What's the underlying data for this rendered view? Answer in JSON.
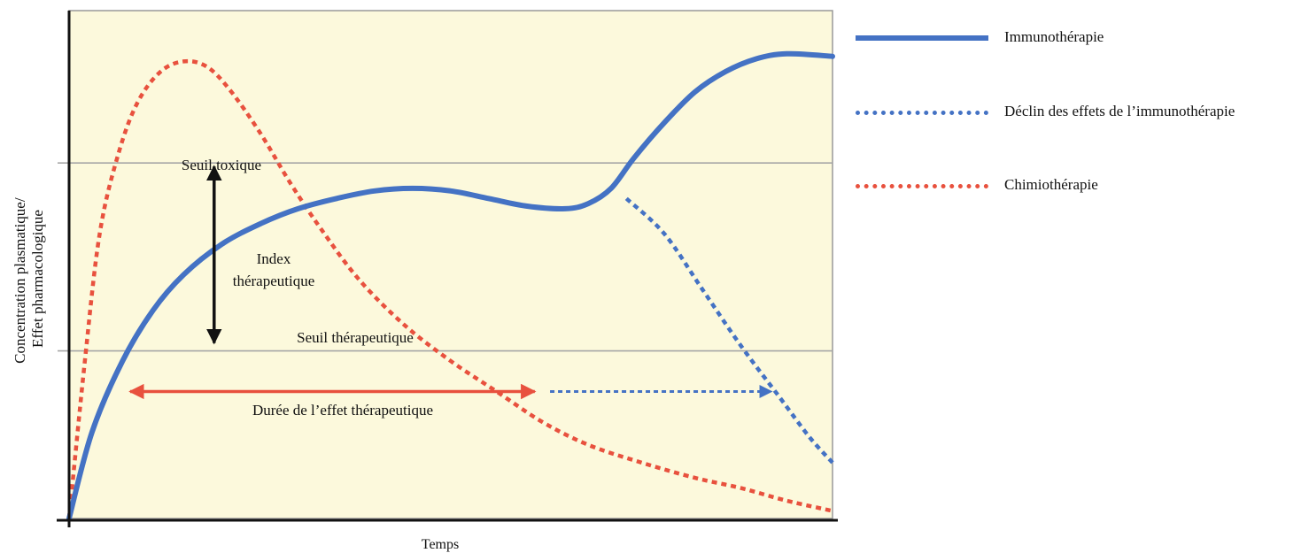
{
  "chart_data": {
    "type": "line",
    "title": "",
    "xlabel": "Temps",
    "ylabel_lines": [
      "Concentration plasmatique/",
      "Effet pharmacologique"
    ],
    "xlim": [
      0,
      100
    ],
    "ylim": [
      0,
      100
    ],
    "grid": false,
    "legend_position": "right",
    "thresholds": [
      {
        "name": "Seuil toxique",
        "y": 70
      },
      {
        "name": "Seuil thérapeutique",
        "y": 33
      }
    ],
    "series": [
      {
        "name": "Immunothérapie",
        "style": "solid",
        "color": "#4472c4",
        "points": [
          [
            0,
            0
          ],
          [
            3,
            17
          ],
          [
            7,
            31
          ],
          [
            11,
            41
          ],
          [
            15,
            48
          ],
          [
            20,
            54
          ],
          [
            25,
            58
          ],
          [
            30,
            61
          ],
          [
            35,
            63
          ],
          [
            40,
            64.5
          ],
          [
            45,
            65
          ],
          [
            50,
            64.5
          ],
          [
            55,
            63
          ],
          [
            60,
            61.5
          ],
          [
            65,
            61
          ],
          [
            68,
            62
          ],
          [
            71,
            65
          ],
          [
            74,
            71
          ],
          [
            78,
            78
          ],
          [
            82,
            84
          ],
          [
            86,
            88
          ],
          [
            90,
            90.5
          ],
          [
            94,
            91.5
          ],
          [
            100,
            91
          ]
        ]
      },
      {
        "name": "Déclin des effets de l’immunothérapie",
        "style": "dotted",
        "color": "#4472c4",
        "points": [
          [
            73,
            63
          ],
          [
            78,
            56
          ],
          [
            83,
            45
          ],
          [
            88,
            34
          ],
          [
            93,
            24
          ],
          [
            97,
            16
          ],
          [
            100,
            11
          ]
        ]
      },
      {
        "name": "Chimiothérapie",
        "style": "dotted",
        "color": "#e8513e",
        "points": [
          [
            0,
            0
          ],
          [
            2,
            30
          ],
          [
            4,
            56
          ],
          [
            6.5,
            72
          ],
          [
            9,
            82
          ],
          [
            12,
            88
          ],
          [
            15,
            90
          ],
          [
            18,
            89
          ],
          [
            21,
            84.5
          ],
          [
            25,
            76
          ],
          [
            29,
            66
          ],
          [
            33,
            57
          ],
          [
            38,
            47
          ],
          [
            44,
            38
          ],
          [
            50,
            31
          ],
          [
            56,
            25
          ],
          [
            62,
            19
          ],
          [
            68,
            14.5
          ],
          [
            75,
            11
          ],
          [
            82,
            8
          ],
          [
            88,
            6
          ],
          [
            94,
            3.5
          ],
          [
            100,
            1.5
          ]
        ]
      }
    ],
    "annotations": {
      "index_label_lines": [
        "Index",
        "thérapeutique"
      ],
      "duration_label": "Durée de l’effet thérapeutique",
      "index_arrow": {
        "x": 19,
        "y_from": 33,
        "y_to": 70
      },
      "duration_arrow_solid": {
        "y": 25,
        "x_from": 8,
        "x_to": 61
      },
      "duration_arrow_dotted": {
        "y": 25,
        "x_from": 63,
        "x_to": 92
      }
    }
  },
  "colors": {
    "plot_background": "#fcf9dc",
    "plot_border": "#999999",
    "threshold_line": "#a6a6a6",
    "axis": "#111111",
    "index_arrow": "#111111",
    "duration_arrow": "#e8513e",
    "duration_arrow_extension": "#4472c4"
  }
}
